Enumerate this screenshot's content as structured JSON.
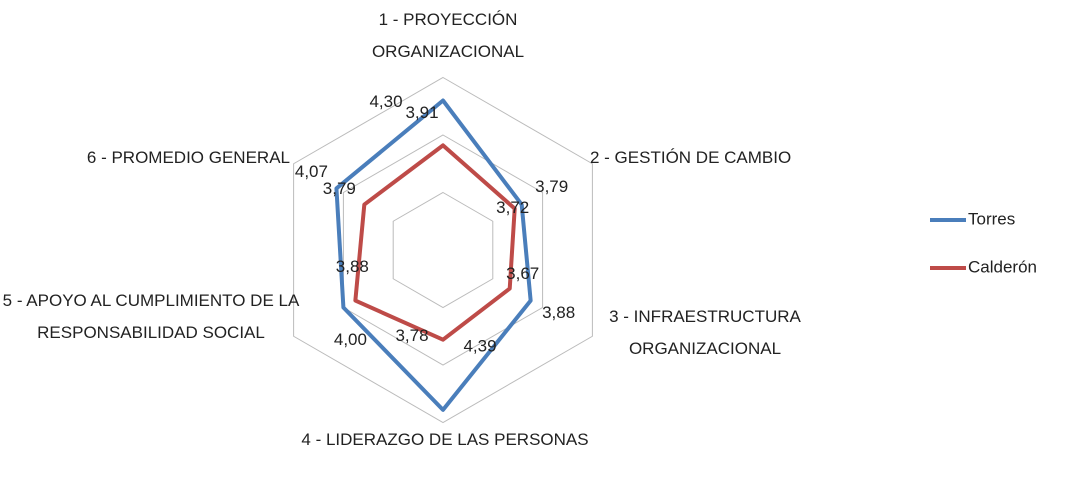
{
  "chart_data": {
    "type": "radar",
    "categories": [
      "1  -  PROYECCIÓN ORGANIZACIONAL",
      "2  -  GESTIÓN DE CAMBIO",
      "3  -  INFRAESTRUCTURA ORGANIZACIONAL",
      "4  -  LIDERAZGO DE LAS PERSONAS",
      "5  -  APOYO AL CUMPLIMIENTO DE LA RESPONSABILIDAD SOCIAL",
      "6  -  PROMEDIO GENERAL"
    ],
    "series": [
      {
        "name": "Torres",
        "color": "#4a7ebb",
        "values": [
          4.3,
          3.79,
          3.88,
          4.39,
          4.0,
          4.07
        ],
        "value_labels": [
          "4,30",
          "3,79",
          "3,88",
          "4,39",
          "4,00",
          "4,07"
        ]
      },
      {
        "name": "Calderón",
        "color": "#be4b48",
        "values": [
          3.91,
          3.72,
          3.67,
          3.78,
          3.88,
          3.79
        ],
        "value_labels": [
          "3,91",
          "3,72",
          "3,67",
          "3,78",
          "3,88",
          "3,79"
        ]
      }
    ],
    "rlim": [
      3,
      4.5
    ],
    "rticks": [
      3.5,
      4,
      4.5
    ],
    "legend": "right"
  }
}
